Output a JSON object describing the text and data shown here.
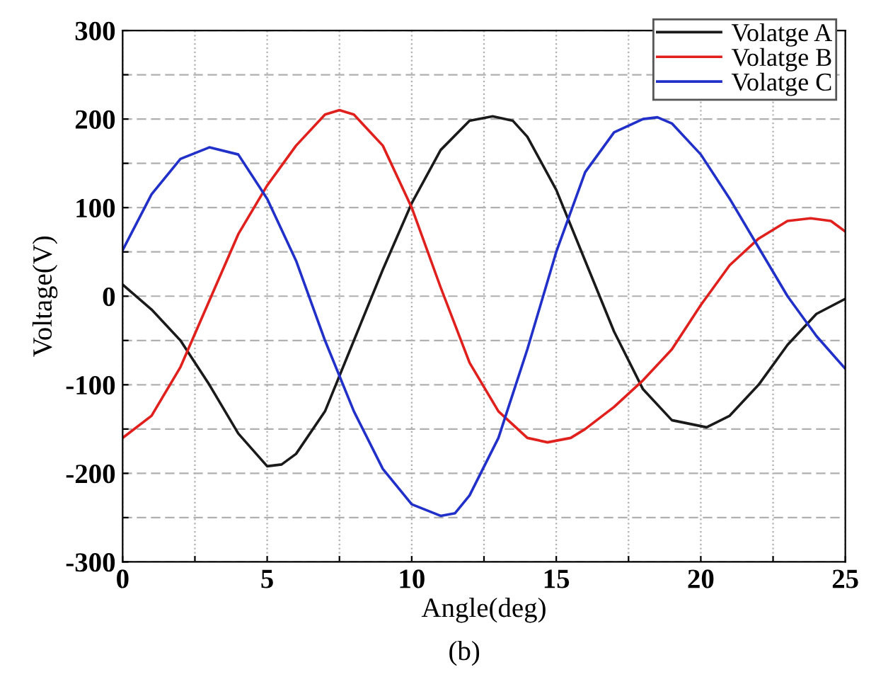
{
  "chart_data": {
    "type": "line",
    "xlabel": "Angle(deg)",
    "ylabel": "Voltage(V)",
    "annotations": [
      "(b)"
    ],
    "xlim": [
      0,
      25
    ],
    "ylim": [
      -300,
      300
    ],
    "xticks": [
      0,
      {
        "value": 2.5,
        "label": null
      },
      5,
      {
        "value": 7.5,
        "label": null
      },
      10,
      {
        "value": 12.5,
        "label": null
      },
      15,
      {
        "value": 17.5,
        "label": null
      },
      20,
      {
        "value": 22.5,
        "label": null
      },
      25
    ],
    "yticks": [
      -300,
      {
        "value": -250,
        "label": null
      },
      -200,
      {
        "value": -150,
        "label": null
      },
      -100,
      {
        "value": -50,
        "label": null
      },
      0,
      {
        "value": 50,
        "label": null
      },
      100,
      {
        "value": 150,
        "label": null
      },
      200,
      {
        "value": 250,
        "label": null
      },
      300
    ],
    "grid": true,
    "legend": "top right",
    "marker": "none",
    "line_style": "solid",
    "series": [
      {
        "name": "Volatge A",
        "color": "#1a1a1a",
        "x": [
          0,
          1,
          2,
          3,
          4,
          5,
          5.5,
          6,
          7,
          8,
          9,
          10,
          11,
          12,
          12.8,
          13.5,
          14,
          15,
          16,
          17,
          18,
          19,
          20.2,
          21,
          22,
          23,
          24,
          25
        ],
        "values": [
          13,
          -15,
          -50,
          -100,
          -155,
          -192,
          -190,
          -178,
          -130,
          -50,
          30,
          105,
          165,
          198,
          203,
          198,
          180,
          120,
          40,
          -40,
          -105,
          -140,
          -148,
          -135,
          -100,
          -55,
          -20,
          -3
        ]
      },
      {
        "name": "Volatge B",
        "color": "#e0201c",
        "x": [
          0,
          1,
          2,
          3,
          4,
          5,
          6,
          7,
          7.5,
          8,
          9,
          10,
          11,
          12,
          13,
          14,
          14.7,
          15.5,
          16,
          17,
          18,
          19,
          20,
          21,
          22,
          23,
          23.8,
          24.5,
          25
        ],
        "values": [
          -160,
          -135,
          -80,
          -5,
          70,
          125,
          170,
          205,
          210,
          205,
          170,
          100,
          10,
          -75,
          -130,
          -160,
          -165,
          -160,
          -150,
          -125,
          -95,
          -60,
          -10,
          35,
          65,
          85,
          88,
          85,
          73
        ]
      },
      {
        "name": "Volatge C",
        "color": "#2030c8",
        "x": [
          0,
          1,
          2,
          3,
          4,
          5,
          6,
          7,
          8,
          9,
          10,
          11,
          11.5,
          12,
          13,
          14,
          15,
          16,
          17,
          18,
          18.5,
          19,
          20,
          21,
          22,
          23,
          24,
          25
        ],
        "values": [
          52,
          115,
          155,
          168,
          160,
          110,
          40,
          -50,
          -130,
          -195,
          -235,
          -248,
          -245,
          -225,
          -160,
          -60,
          50,
          140,
          185,
          200,
          202,
          195,
          160,
          110,
          55,
          0,
          -45,
          -82
        ]
      }
    ]
  }
}
